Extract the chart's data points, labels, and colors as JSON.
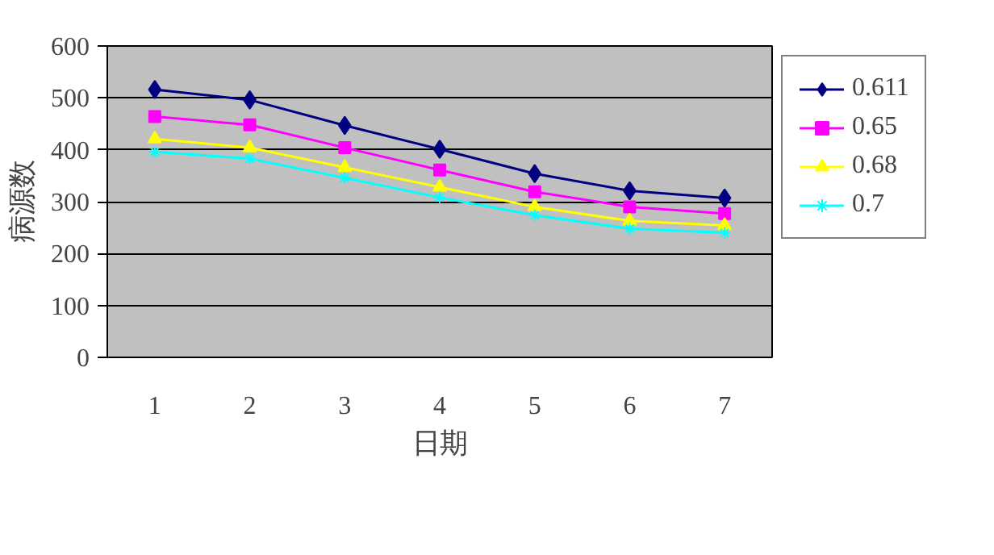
{
  "chart_data": {
    "type": "line",
    "xlabel": "日期",
    "ylabel": "病源数",
    "categories": [
      "1",
      "2",
      "3",
      "4",
      "5",
      "6",
      "7"
    ],
    "ylim": [
      0,
      600
    ],
    "yticks": [
      0,
      100,
      200,
      300,
      400,
      500,
      600
    ],
    "grid": "y",
    "legend": "right",
    "series": [
      {
        "name": "0.611",
        "color": "#000080",
        "marker": "diamond",
        "values": [
          516,
          496,
          447,
          401,
          354,
          321,
          307
        ]
      },
      {
        "name": "0.65",
        "color": "#ff00ff",
        "marker": "square",
        "values": [
          464,
          448,
          404,
          361,
          319,
          290,
          277
        ]
      },
      {
        "name": "0.68",
        "color": "#ffff00",
        "marker": "triangle",
        "values": [
          421,
          404,
          366,
          328,
          290,
          263,
          254
        ]
      },
      {
        "name": "0.7",
        "color": "#00ffff",
        "marker": "cross",
        "values": [
          396,
          383,
          346,
          308,
          274,
          248,
          240
        ]
      }
    ]
  }
}
